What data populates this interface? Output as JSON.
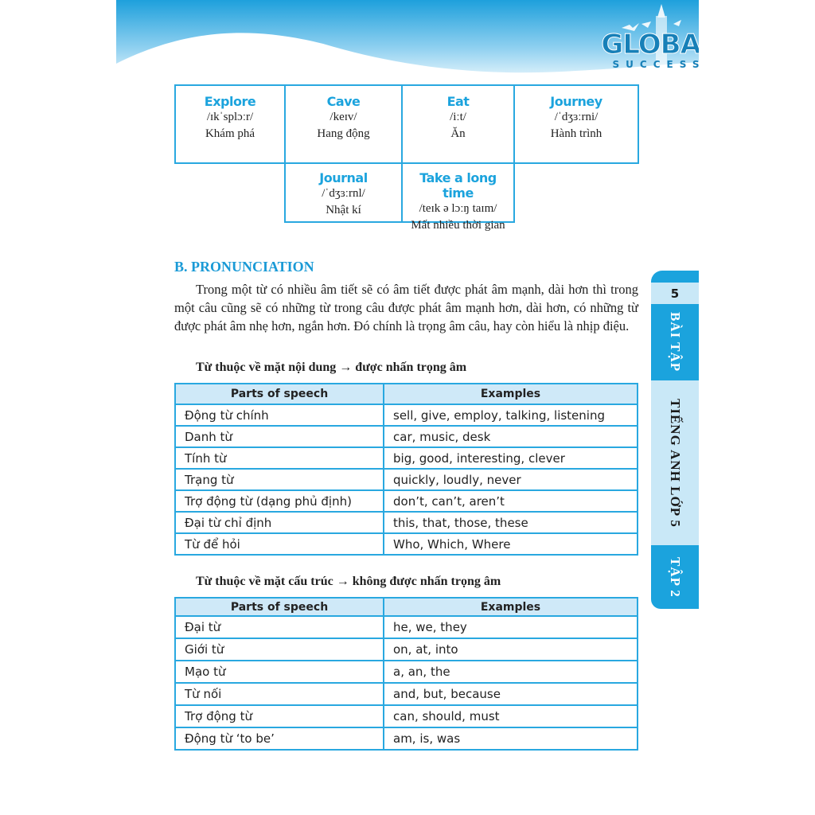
{
  "header": {
    "logo_text": "GLOBAL",
    "logo_subtext": "SUCCESS"
  },
  "vocabulary": [
    {
      "word": "Explore",
      "ipa": "/ɪkˈsplɔːr/",
      "meaning": "Khám phá"
    },
    {
      "word": "Cave",
      "ipa": "/keɪv/",
      "meaning": "Hang động"
    },
    {
      "word": "Eat",
      "ipa": "/iːt/",
      "meaning": "Ăn"
    },
    {
      "word": "Journey",
      "ipa": "/ˈdʒɜːrni/",
      "meaning": "Hành trình"
    },
    {
      "word": "Journal",
      "ipa": "/ˈdʒɜːrnl/",
      "meaning": "Nhật kí"
    },
    {
      "word": "Take a long time",
      "ipa": "/teɪk ə lɔːŋ taɪm/",
      "meaning": "Mất nhiều thời gian"
    }
  ],
  "section": {
    "title": "B. PRONUNCIATION",
    "paragraph": "Trong một từ có nhiều âm tiết sẽ có âm tiết được phát âm mạnh, dài hơn thì trong một câu cũng sẽ có những từ trong câu được phát âm mạnh hơn, dài hơn, có những từ được phát âm nhẹ hơn, ngắn hơn. Đó chính là trọng âm câu, hay còn hiểu là nhịp điệu.",
    "content_words_heading": "Từ thuộc về mặt nội dung → được nhấn trọng âm",
    "structure_words_heading": "Từ thuộc về mặt cấu trúc → không được nhấn trọng âm"
  },
  "content_table": {
    "headers": [
      "Parts of speech",
      "Examples"
    ],
    "rows": [
      [
        "Động từ chính",
        "sell, give, employ, talking, listening"
      ],
      [
        "Danh từ",
        "car, music, desk"
      ],
      [
        "Tính từ",
        "big, good, interesting, clever"
      ],
      [
        "Trạng từ",
        "quickly, loudly, never"
      ],
      [
        "Trợ động từ (dạng phủ định)",
        "don’t, can’t, aren’t"
      ],
      [
        "Đại từ chỉ định",
        "this, that, those, these"
      ],
      [
        "Từ để hỏi",
        "Who, Which, Where"
      ]
    ]
  },
  "structure_table": {
    "headers": [
      "Parts of speech",
      "Examples"
    ],
    "rows": [
      [
        "Đại từ",
        "he, we, they"
      ],
      [
        "Giới từ",
        "on, at, into"
      ],
      [
        "Mạo từ",
        "a, an, the"
      ],
      [
        "Từ nối",
        "and, but, because"
      ],
      [
        "Trợ động từ",
        "can, should, must"
      ],
      [
        "Động từ ‘to be’",
        "am, is, was"
      ]
    ]
  },
  "side_tab": {
    "unit": "5",
    "part1": "BÀI TẬP",
    "part2": "TIẾNG ANH LỚP 5",
    "part3": "TẬP 2"
  },
  "colors": {
    "accent": "#1ba3dd",
    "light": "#cfe9f8",
    "border": "#29a8e0"
  }
}
